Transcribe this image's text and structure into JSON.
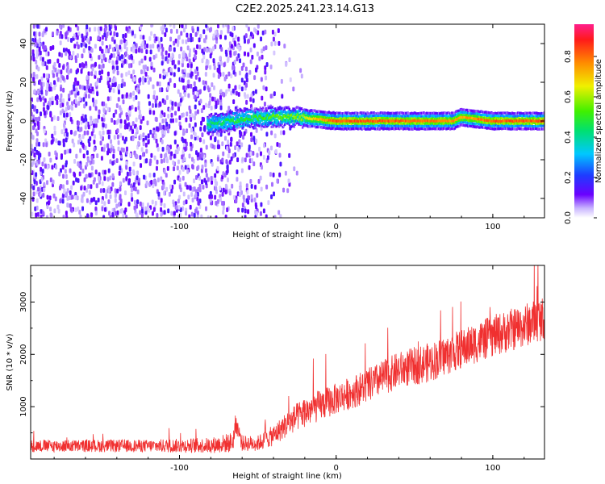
{
  "title": "C2E2.2025.241.23.14.G13",
  "chart_data": [
    {
      "type": "heatmap",
      "xlabel": "Height of straight line (km)",
      "ylabel": "Frequency (Hz)",
      "xlim": [
        -195,
        133
      ],
      "ylim": [
        -50,
        50
      ],
      "x_ticks": [
        -100,
        0,
        100
      ],
      "y_ticks": [
        -40,
        -20,
        0,
        20,
        40
      ],
      "colorbar": {
        "label": "Normalized spectral amplitude",
        "range": [
          0,
          0.96
        ],
        "ticks": [
          0.0,
          0.2,
          0.4,
          0.6,
          0.8
        ]
      },
      "ridge": {
        "description_x": [
          -82,
          -60,
          -40,
          -25,
          0,
          40,
          75,
          80,
          100,
          133
        ],
        "frequency_hz": [
          -2,
          1,
          2,
          2,
          0,
          0,
          0,
          2,
          0,
          0
        ],
        "amplitude": [
          0.45,
          0.5,
          0.55,
          0.6,
          0.85,
          0.85,
          0.8,
          0.75,
          0.85,
          0.85
        ]
      },
      "noise": {
        "x_start": -195,
        "x_dense_end": -80,
        "x_sparse_end": -20
      }
    },
    {
      "type": "line",
      "xlabel": "Height of straight line (km)",
      "ylabel": "SNR (10 * v/v)",
      "xlim": [
        -195,
        133
      ],
      "ylim": [
        0,
        3700
      ],
      "x_ticks": [
        -100,
        0,
        100
      ],
      "y_ticks": [
        1000,
        2000,
        3000
      ],
      "series": [
        {
          "color": "#f03030",
          "anchors_x": [
            -195,
            -120,
            -80,
            -66,
            -64,
            -60,
            -50,
            -40,
            -30,
            -20,
            0,
            20,
            40,
            60,
            80,
            100,
            120,
            133
          ],
          "anchors_y": [
            250,
            250,
            260,
            320,
            700,
            300,
            300,
            450,
            700,
            900,
            1150,
            1400,
            1700,
            1850,
            2100,
            2350,
            2550,
            2700
          ],
          "spread": [
            120,
            120,
            150,
            200,
            200,
            150,
            150,
            200,
            250,
            300,
            300,
            330,
            350,
            380,
            380,
            400,
            420,
            420
          ]
        }
      ]
    }
  ]
}
